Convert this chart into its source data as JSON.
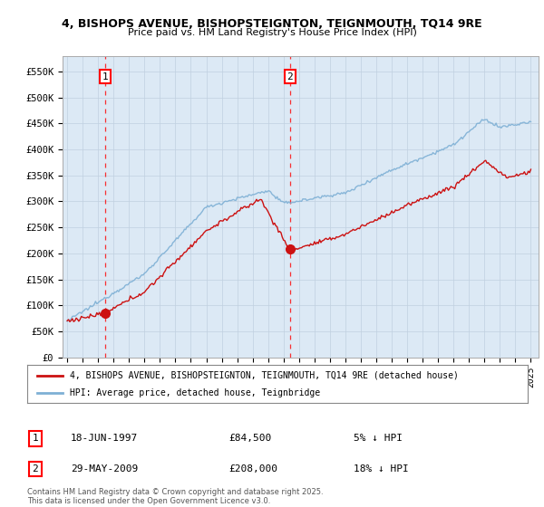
{
  "title_line1": "4, BISHOPS AVENUE, BISHOPSTEIGNTON, TEIGNMOUTH, TQ14 9RE",
  "title_line2": "Price paid vs. HM Land Registry's House Price Index (HPI)",
  "ylabel_ticks": [
    "£0",
    "£50K",
    "£100K",
    "£150K",
    "£200K",
    "£250K",
    "£300K",
    "£350K",
    "£400K",
    "£450K",
    "£500K",
    "£550K"
  ],
  "ytick_vals": [
    0,
    50000,
    100000,
    150000,
    200000,
    250000,
    300000,
    350000,
    400000,
    450000,
    500000,
    550000
  ],
  "ylim": [
    0,
    580000
  ],
  "year_start": 1995,
  "year_end": 2025,
  "hpi_color": "#7eb0d5",
  "price_color": "#cc1111",
  "annotation1_label": "1",
  "annotation1_date": "18-JUN-1997",
  "annotation1_price": "£84,500",
  "annotation1_hpi": "5% ↓ HPI",
  "annotation1_year": 1997.46,
  "annotation1_value": 84500,
  "annotation2_label": "2",
  "annotation2_date": "29-MAY-2009",
  "annotation2_price": "£208,000",
  "annotation2_hpi": "18% ↓ HPI",
  "annotation2_year": 2009.41,
  "annotation2_value": 208000,
  "legend_line1": "4, BISHOPS AVENUE, BISHOPSTEIGNTON, TEIGNMOUTH, TQ14 9RE (detached house)",
  "legend_line2": "HPI: Average price, detached house, Teignbridge",
  "footnote": "Contains HM Land Registry data © Crown copyright and database right 2025.\nThis data is licensed under the Open Government Licence v3.0.",
  "bg_color": "#ffffff",
  "plot_bg_color": "#dce9f5"
}
